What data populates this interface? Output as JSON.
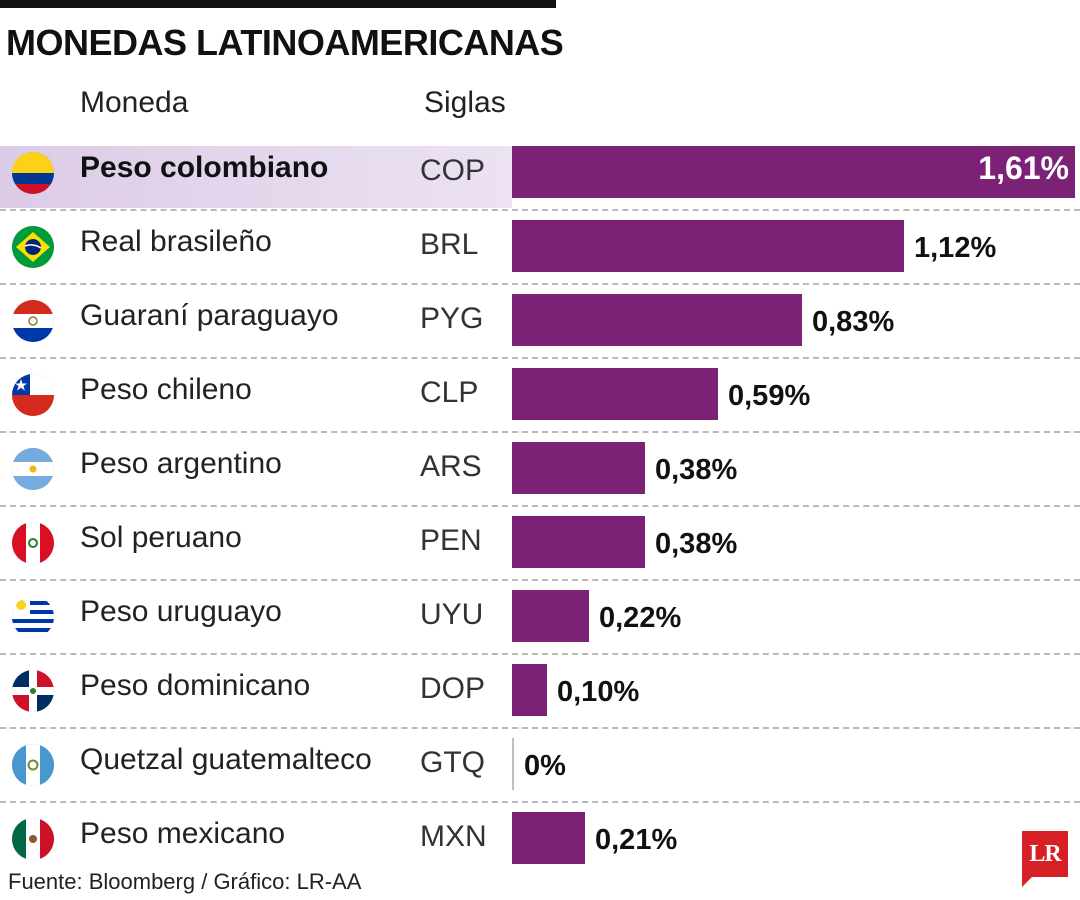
{
  "title": "MONEDAS LATINOAMERICANAS",
  "headers": {
    "currency": "Moneda",
    "code": "Siglas"
  },
  "source": "Fuente: Bloomberg / Gráfico: LR-AA",
  "logo_text": "LR",
  "colors": {
    "bar": "#7b2276",
    "highlight": "#dccbe6",
    "logo": "#d62026"
  },
  "chart_data": {
    "type": "bar",
    "orientation": "horizontal",
    "title": "MONEDAS LATINOAMERICANAS",
    "xlabel": "",
    "ylabel": "",
    "xlim": [
      0,
      1.61
    ],
    "categories": [
      "Peso colombiano",
      "Real brasileño",
      "Guaraní paraguayo",
      "Peso chileno",
      "Peso argentino",
      "Sol peruano",
      "Peso uruguayo",
      "Peso dominicano",
      "Quetzal guatemalteco",
      "Peso mexicano"
    ],
    "codes": [
      "COP",
      "BRL",
      "PYG",
      "CLP",
      "ARS",
      "PEN",
      "UYU",
      "DOP",
      "GTQ",
      "MXN"
    ],
    "flags": [
      "colombia-flag-icon",
      "brazil-flag-icon",
      "paraguay-flag-icon",
      "chile-flag-icon",
      "argentina-flag-icon",
      "peru-flag-icon",
      "uruguay-flag-icon",
      "dominican-republic-flag-icon",
      "guatemala-flag-icon",
      "mexico-flag-icon"
    ],
    "values": [
      1.61,
      1.12,
      0.83,
      0.59,
      0.38,
      0.38,
      0.22,
      0.1,
      0,
      0.21
    ],
    "labels": [
      "1,61%",
      "1,12%",
      "0,83%",
      "0,59%",
      "0,38%",
      "0,38%",
      "0,22%",
      "0,10%",
      "0%",
      "0,21%"
    ],
    "highlighted": "Peso colombiano"
  }
}
